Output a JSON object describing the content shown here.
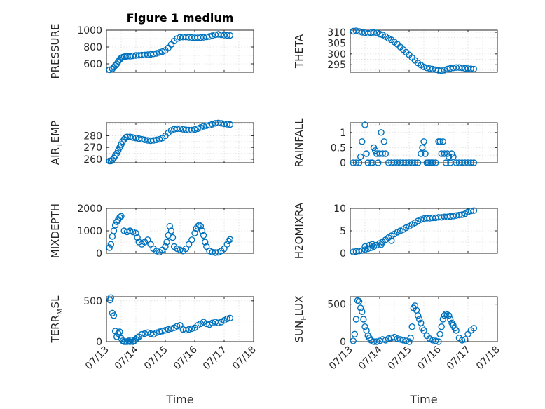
{
  "figure": {
    "marker_color": "#0072BD",
    "x_axis_label": "Time",
    "x_tick_labels": [
      "07/13",
      "07/14",
      "07/15",
      "07/16",
      "07/17",
      "07/18"
    ]
  },
  "chart_data": [
    {
      "type": "scatter",
      "title": "Figure 1 medium",
      "ylabel": "PRESSURE",
      "xlabel": "",
      "xlim": [
        "07/13",
        "07/18"
      ],
      "ylim": [
        500,
        1000
      ],
      "yticks": [
        600,
        800,
        1000
      ],
      "series": [
        {
          "x": [
            0.1,
            0.2,
            0.25,
            0.3,
            0.35,
            0.4,
            0.45,
            0.5,
            0.55,
            0.6,
            0.65,
            0.7,
            0.8,
            0.9,
            1.0,
            1.1,
            1.2,
            1.3,
            1.4,
            1.5,
            1.6,
            1.7,
            1.8,
            1.9,
            2.0,
            2.1,
            2.2,
            2.3,
            2.4,
            2.5,
            2.6,
            2.7,
            2.8,
            2.9,
            3.0,
            3.1,
            3.2,
            3.3,
            3.4,
            3.5,
            3.6,
            3.7,
            3.8,
            3.9,
            4.0,
            4.1,
            4.2
          ],
          "y": [
            530,
            540,
            560,
            580,
            600,
            630,
            650,
            670,
            680,
            685,
            688,
            690,
            690,
            695,
            700,
            702,
            704,
            706,
            708,
            712,
            718,
            725,
            735,
            745,
            760,
            790,
            830,
            870,
            900,
            915,
            918,
            918,
            915,
            912,
            910,
            910,
            912,
            915,
            920,
            925,
            935,
            945,
            950,
            945,
            940,
            938,
            937
          ]
        }
      ]
    },
    {
      "type": "scatter",
      "title": "",
      "ylabel": "THETA",
      "xlabel": "",
      "xlim": [
        "07/13",
        "07/18"
      ],
      "ylim": [
        291.5,
        311
      ],
      "yticks": [
        295,
        300,
        305,
        310
      ],
      "series": [
        {
          "x": [
            0.1,
            0.2,
            0.3,
            0.4,
            0.5,
            0.6,
            0.7,
            0.8,
            0.9,
            1.0,
            1.1,
            1.2,
            1.3,
            1.4,
            1.5,
            1.6,
            1.7,
            1.8,
            1.9,
            2.0,
            2.1,
            2.2,
            2.3,
            2.4,
            2.5,
            2.6,
            2.7,
            2.8,
            2.9,
            3.0,
            3.1,
            3.2,
            3.3,
            3.4,
            3.5,
            3.6,
            3.7,
            3.8,
            3.9,
            4.0,
            4.1,
            4.2
          ],
          "y": [
            310.5,
            310.7,
            310.4,
            310,
            309.8,
            309.5,
            309.8,
            310,
            309.7,
            309.2,
            308.8,
            308,
            307.2,
            306.5,
            305.5,
            304.5,
            303.2,
            302,
            300.8,
            299.6,
            298.3,
            297,
            295.8,
            294.8,
            294,
            293.5,
            293.2,
            293,
            292.7,
            292.4,
            292.2,
            292.5,
            293,
            293.3,
            293.5,
            293.7,
            293.7,
            293.5,
            293.3,
            293.2,
            293.1,
            293
          ]
        }
      ]
    },
    {
      "type": "scatter",
      "title": "",
      "ylabel": "AIR_TEMP",
      "xlabel": "",
      "xlim": [
        "07/13",
        "07/18"
      ],
      "ylim": [
        257,
        291
      ],
      "yticks": [
        260,
        270,
        280
      ],
      "series": [
        {
          "x": [
            0.1,
            0.15,
            0.2,
            0.25,
            0.3,
            0.35,
            0.4,
            0.45,
            0.5,
            0.55,
            0.6,
            0.65,
            0.7,
            0.8,
            0.9,
            1.0,
            1.1,
            1.2,
            1.3,
            1.4,
            1.5,
            1.6,
            1.7,
            1.8,
            1.9,
            2.0,
            2.1,
            2.2,
            2.3,
            2.4,
            2.5,
            2.6,
            2.7,
            2.8,
            2.9,
            3.0,
            3.1,
            3.2,
            3.3,
            3.4,
            3.5,
            3.6,
            3.7,
            3.8,
            3.9,
            4.0,
            4.1,
            4.2
          ],
          "y": [
            258.5,
            258.5,
            259.5,
            261,
            263,
            265,
            267.5,
            270,
            272.5,
            275,
            277,
            278.5,
            279,
            279,
            278.5,
            278,
            277.5,
            277,
            276.5,
            276,
            275.8,
            276,
            276.5,
            277,
            278,
            280,
            282.5,
            284.5,
            285.5,
            286,
            286,
            285.5,
            285,
            284.8,
            284.8,
            285.2,
            286,
            287,
            288,
            288.5,
            289,
            289.8,
            290.5,
            290.8,
            290.5,
            290,
            289.8,
            289.5
          ]
        }
      ]
    },
    {
      "type": "scatter",
      "title": "",
      "ylabel": "RAINFALL",
      "xlabel": "",
      "xlim": [
        "07/13",
        "07/18"
      ],
      "ylim": [
        0,
        1.32
      ],
      "yticks": [
        0,
        0.5,
        1
      ],
      "ytick_labels": [
        "0",
        "0.5",
        "1"
      ],
      "series": [
        {
          "x": [
            0.1,
            0.2,
            0.3,
            0.35,
            0.4,
            0.5,
            0.55,
            0.6,
            0.7,
            0.75,
            0.8,
            0.85,
            0.9,
            0.95,
            1.0,
            1.05,
            1.1,
            1.15,
            1.2,
            1.3,
            1.4,
            1.5,
            1.6,
            1.7,
            1.8,
            1.9,
            2.0,
            2.1,
            2.2,
            2.3,
            2.4,
            2.45,
            2.5,
            2.55,
            2.6,
            2.65,
            2.7,
            2.75,
            2.8,
            2.9,
            3.0,
            3.05,
            3.1,
            3.15,
            3.2,
            3.25,
            3.3,
            3.35,
            3.4,
            3.45,
            3.5,
            3.6,
            3.7,
            3.8,
            3.9,
            4.0,
            4.1,
            4.2
          ],
          "y": [
            0,
            0,
            0,
            0.2,
            0.7,
            1.25,
            0.3,
            0,
            0,
            0,
            0.5,
            0.4,
            0.3,
            0,
            0.3,
            1.0,
            0.3,
            0.7,
            0.3,
            0,
            0,
            0,
            0,
            0,
            0,
            0,
            0,
            0,
            0,
            0,
            0.3,
            0.5,
            0.7,
            0.3,
            0,
            0,
            0,
            0,
            0,
            0,
            0.7,
            0.7,
            0.3,
            0.7,
            0.3,
            0,
            0.3,
            0.2,
            0,
            0.3,
            0.2,
            0,
            0,
            0,
            0,
            0,
            0,
            0
          ]
        }
      ]
    },
    {
      "type": "scatter",
      "title": "",
      "ylabel": "MIXDEPTH",
      "xlabel": "",
      "xlim": [
        "07/13",
        "07/18"
      ],
      "ylim": [
        0,
        2000
      ],
      "yticks": [
        0,
        1000,
        2000
      ],
      "series": [
        {
          "x": [
            0.1,
            0.15,
            0.2,
            0.25,
            0.3,
            0.35,
            0.4,
            0.45,
            0.5,
            0.6,
            0.7,
            0.8,
            0.9,
            1.0,
            1.05,
            1.1,
            1.2,
            1.3,
            1.4,
            1.5,
            1.6,
            1.7,
            1.8,
            1.9,
            2.0,
            2.05,
            2.1,
            2.15,
            2.2,
            2.25,
            2.3,
            2.4,
            2.5,
            2.6,
            2.7,
            2.8,
            2.9,
            3.0,
            3.05,
            3.1,
            3.15,
            3.2,
            3.25,
            3.3,
            3.35,
            3.4,
            3.5,
            3.6,
            3.7,
            3.8,
            3.9,
            4.0,
            4.1,
            4.15,
            4.2
          ],
          "y": [
            250,
            400,
            750,
            1000,
            1250,
            1400,
            1500,
            1600,
            1650,
            1000,
            950,
            1000,
            950,
            900,
            700,
            500,
            400,
            500,
            600,
            400,
            200,
            100,
            50,
            150,
            300,
            500,
            800,
            1200,
            1000,
            700,
            300,
            200,
            150,
            100,
            200,
            400,
            600,
            900,
            1100,
            1200,
            1250,
            1200,
            1000,
            800,
            500,
            300,
            100,
            50,
            30,
            40,
            100,
            200,
            400,
            550,
            620
          ]
        }
      ]
    },
    {
      "type": "scatter",
      "title": "",
      "ylabel": "H2OMIXRA",
      "xlabel": "",
      "xlim": [
        "07/13",
        "07/18"
      ],
      "ylim": [
        0,
        10
      ],
      "yticks": [
        0,
        5,
        10
      ],
      "series": [
        {
          "x": [
            0.1,
            0.2,
            0.3,
            0.4,
            0.5,
            0.6,
            0.7,
            0.8,
            0.9,
            1.0,
            1.1,
            1.2,
            1.3,
            1.4,
            1.5,
            1.6,
            1.7,
            1.8,
            1.9,
            2.0,
            2.1,
            2.2,
            2.3,
            2.4,
            2.5,
            2.6,
            2.7,
            2.8,
            2.9,
            3.0,
            3.1,
            3.2,
            3.3,
            3.4,
            3.5,
            3.6,
            3.7,
            3.8,
            3.9,
            4.0,
            4.1,
            4.2,
            0.5,
            0.65,
            0.75,
            1.05,
            1.4
          ],
          "y": [
            0.3,
            0.4,
            0.5,
            0.6,
            0.8,
            1.0,
            1.2,
            1.5,
            1.8,
            2.2,
            2.5,
            3.0,
            3.5,
            3.9,
            4.3,
            4.7,
            5.0,
            5.3,
            5.7,
            6.0,
            6.4,
            6.8,
            7.2,
            7.5,
            7.7,
            7.8,
            7.8,
            7.9,
            7.9,
            8.0,
            8.0,
            8.1,
            8.1,
            8.2,
            8.3,
            8.4,
            8.5,
            8.6,
            8.8,
            9.2,
            9.4,
            9.5,
            1.5,
            1.8,
            2.0,
            1.9,
            2.8
          ]
        }
      ]
    },
    {
      "type": "scatter",
      "title": "",
      "ylabel": "TERR_MSL",
      "xlabel": "Time",
      "xlim": [
        "07/13",
        "07/18"
      ],
      "ylim": [
        0,
        550
      ],
      "yticks": [
        0,
        500
      ],
      "series": [
        {
          "x": [
            0.12,
            0.15,
            0.2,
            0.25,
            0.3,
            0.35,
            0.4,
            0.45,
            0.5,
            0.55,
            0.6,
            0.65,
            0.7,
            0.75,
            0.8,
            0.85,
            0.9,
            0.95,
            1.0,
            1.05,
            1.1,
            1.2,
            1.3,
            1.4,
            1.5,
            1.6,
            1.7,
            1.8,
            1.9,
            2.0,
            2.1,
            2.2,
            2.3,
            2.4,
            2.5,
            2.6,
            2.7,
            2.8,
            2.9,
            3.0,
            3.1,
            3.2,
            3.3,
            3.4,
            3.5,
            3.6,
            3.7,
            3.8,
            3.9,
            4.0,
            4.1,
            4.2
          ],
          "y": [
            510,
            540,
            350,
            320,
            130,
            60,
            100,
            120,
            40,
            10,
            0,
            0,
            0,
            10,
            0,
            20,
            0,
            10,
            30,
            50,
            60,
            90,
            100,
            110,
            100,
            90,
            110,
            120,
            130,
            140,
            150,
            160,
            170,
            190,
            200,
            150,
            140,
            150,
            160,
            170,
            200,
            220,
            240,
            220,
            210,
            230,
            240,
            230,
            240,
            260,
            280,
            290
          ]
        }
      ]
    },
    {
      "type": "scatter",
      "title": "",
      "ylabel": "SUN_FLUX",
      "xlabel": "Time",
      "xlim": [
        "07/13",
        "07/18"
      ],
      "ylim": [
        0,
        600
      ],
      "yticks": [
        0,
        500
      ],
      "series": [
        {
          "x": [
            0.1,
            0.15,
            0.2,
            0.25,
            0.3,
            0.35,
            0.4,
            0.45,
            0.5,
            0.55,
            0.6,
            0.65,
            0.7,
            0.8,
            0.9,
            1.0,
            1.1,
            1.2,
            1.3,
            1.4,
            1.5,
            1.6,
            1.7,
            1.8,
            1.9,
            2.0,
            2.05,
            2.1,
            2.15,
            2.2,
            2.25,
            2.3,
            2.35,
            2.4,
            2.45,
            2.5,
            2.6,
            2.7,
            2.8,
            2.9,
            3.0,
            3.05,
            3.1,
            3.15,
            3.2,
            3.25,
            3.3,
            3.35,
            3.4,
            3.45,
            3.5,
            3.55,
            3.6,
            3.7,
            3.8,
            3.9,
            4.0,
            4.1,
            4.2
          ],
          "y": [
            10,
            100,
            300,
            550,
            540,
            450,
            400,
            300,
            200,
            150,
            80,
            50,
            20,
            0,
            0,
            10,
            30,
            20,
            40,
            50,
            60,
            40,
            30,
            20,
            10,
            0,
            50,
            200,
            450,
            480,
            420,
            350,
            300,
            250,
            180,
            150,
            80,
            40,
            20,
            10,
            0,
            100,
            200,
            300,
            350,
            370,
            360,
            350,
            300,
            250,
            220,
            180,
            150,
            50,
            20,
            30,
            100,
            150,
            180
          ]
        }
      ]
    }
  ]
}
